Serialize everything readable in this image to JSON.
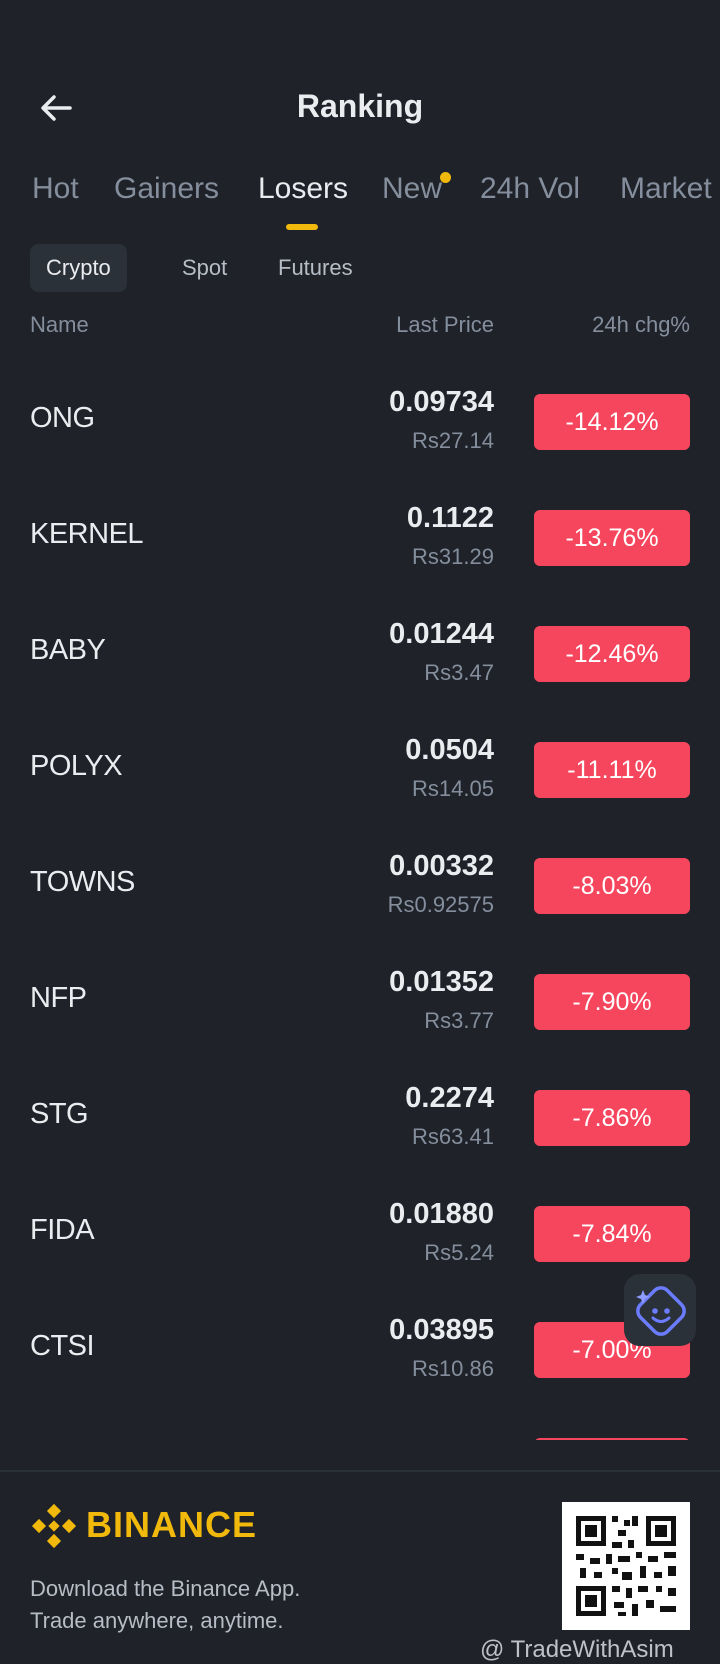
{
  "header": {
    "title": "Ranking"
  },
  "tabs": [
    {
      "label": "Hot",
      "active": false
    },
    {
      "label": "Gainers",
      "active": false
    },
    {
      "label": "Losers",
      "active": true
    },
    {
      "label": "New",
      "active": false,
      "dot": true
    },
    {
      "label": "24h Vol",
      "active": false
    },
    {
      "label": "Market",
      "active": false
    }
  ],
  "subtabs": [
    {
      "label": "Crypto",
      "active": true
    },
    {
      "label": "Spot",
      "active": false
    },
    {
      "label": "Futures",
      "active": false
    }
  ],
  "columns": {
    "name": "Name",
    "last_price": "Last Price",
    "change": "24h chg%"
  },
  "rows": [
    {
      "symbol": "ONG",
      "price": "0.09734",
      "fiat": "Rs27.14",
      "change": "-14.12%"
    },
    {
      "symbol": "KERNEL",
      "price": "0.1122",
      "fiat": "Rs31.29",
      "change": "-13.76%"
    },
    {
      "symbol": "BABY",
      "price": "0.01244",
      "fiat": "Rs3.47",
      "change": "-12.46%"
    },
    {
      "symbol": "POLYX",
      "price": "0.0504",
      "fiat": "Rs14.05",
      "change": "-11.11%"
    },
    {
      "symbol": "TOWNS",
      "price": "0.00332",
      "fiat": "Rs0.92575",
      "change": "-8.03%"
    },
    {
      "symbol": "NFP",
      "price": "0.01352",
      "fiat": "Rs3.77",
      "change": "-7.90%"
    },
    {
      "symbol": "STG",
      "price": "0.2274",
      "fiat": "Rs63.41",
      "change": "-7.86%"
    },
    {
      "symbol": "FIDA",
      "price": "0.01880",
      "fiat": "Rs5.24",
      "change": "-7.84%"
    },
    {
      "symbol": "CTSI",
      "price": "0.03895",
      "fiat": "Rs10.86",
      "change": "-7.00%"
    }
  ],
  "footer": {
    "brand": "BINANCE",
    "line1": "Download the Binance App.",
    "line2": "Trade anywhere, anytime."
  },
  "watermark": "@ TradeWithAsim",
  "colors": {
    "background": "#1f2229",
    "accent": "#f0b90b",
    "loss": "#f6465d",
    "muted": "#848e9c"
  }
}
